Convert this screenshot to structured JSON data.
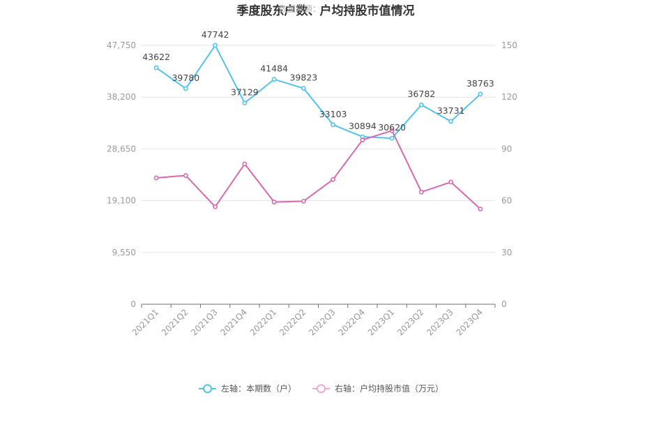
{
  "chart_data": {
    "type": "line",
    "title": "季度股东户数、户均持股市值情况",
    "watermark": "数据来源：",
    "categories": [
      "2021Q1",
      "2021Q2",
      "2021Q3",
      "2021Q4",
      "2022Q1",
      "2022Q2",
      "2022Q3",
      "2022Q4",
      "2023Q1",
      "2023Q2",
      "2023Q3",
      "2023Q4"
    ],
    "left_axis": {
      "ticks": [
        "0",
        "9,550",
        "19,100",
        "28,650",
        "38,200",
        "47,750"
      ],
      "ylim": [
        0,
        47750
      ]
    },
    "right_axis": {
      "ticks": [
        "0",
        "30",
        "60",
        "90",
        "120",
        "150"
      ],
      "ylim": [
        0,
        150
      ]
    },
    "grid": true,
    "legend_position": "bottom",
    "series": [
      {
        "name": "左轴：本期数（户）",
        "axis": "left",
        "color": "#4fc3f0",
        "values": [
          43622,
          39780,
          47742,
          37129,
          41484,
          39823,
          33103,
          30894,
          30620,
          36782,
          33731,
          38763
        ],
        "labels": [
          "43622",
          "39780",
          "47742",
          "37129",
          "41484",
          "39823",
          "33103",
          "30894",
          "30620",
          "36782",
          "33731",
          "38763"
        ]
      },
      {
        "name": "右轴：户均持股市值（万元）",
        "axis": "right",
        "color": "#d868ae",
        "values": [
          73.2,
          74.6,
          56.5,
          81.3,
          59.2,
          59.7,
          72.3,
          95.2,
          100.6,
          65.0,
          70.8,
          55.2
        ]
      }
    ]
  }
}
